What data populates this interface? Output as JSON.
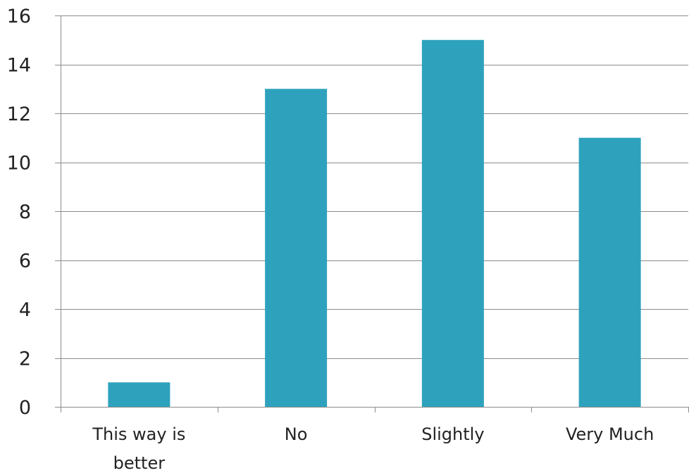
{
  "chart_data": {
    "type": "bar",
    "categories": [
      "This way is better",
      "No",
      "Slightly",
      "Very Much"
    ],
    "category_lines": [
      [
        "This way is",
        "better"
      ],
      [
        "No"
      ],
      [
        "Slightly"
      ],
      [
        "Very Much"
      ]
    ],
    "values": [
      1,
      13,
      15,
      11
    ],
    "title": "",
    "xlabel": "",
    "ylabel": "",
    "ylim": [
      0,
      16
    ],
    "yticks": [
      0,
      2,
      4,
      6,
      8,
      10,
      12,
      14,
      16
    ],
    "grid": true,
    "legend": "none",
    "colors": {
      "bar": "#2EA2BD",
      "grid": "#8C8C8C",
      "axis": "#8C8C8C",
      "text": "#222222"
    }
  }
}
